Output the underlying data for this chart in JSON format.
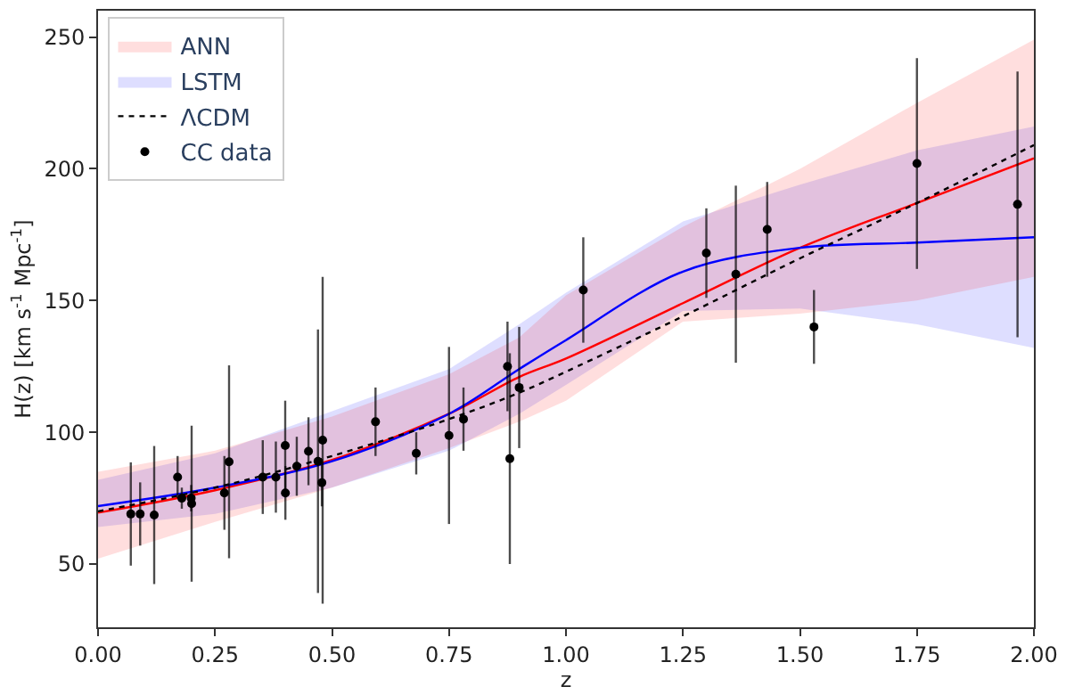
{
  "chart_data": {
    "type": "line",
    "xlabel": "z",
    "ylabel": "H(z) [km s$^{-1}$ Mpc$^{-1}$]",
    "xlim": [
      0,
      2
    ],
    "ylim": [
      26,
      260
    ],
    "xticks": [
      {
        "value": 0,
        "label": "0.00"
      },
      {
        "value": 0.25,
        "label": "0.25"
      },
      {
        "value": 0.5,
        "label": "0.50"
      },
      {
        "value": 0.75,
        "label": "0.75"
      },
      {
        "value": 1,
        "label": "1.00"
      },
      {
        "value": 1.25,
        "label": "1.25"
      },
      {
        "value": 1.5,
        "label": "1.50"
      },
      {
        "value": 1.75,
        "label": "1.75"
      },
      {
        "value": 2,
        "label": "2.00"
      }
    ],
    "yticks": [
      50,
      100,
      150,
      200,
      250
    ],
    "legend": "top left",
    "x": [
      0,
      0.25,
      0.5,
      0.75,
      0.9,
      1.0,
      1.25,
      1.5,
      1.75,
      2.0
    ],
    "series": [
      {
        "name": "ANN",
        "color": "#ff0000",
        "values": [
          69.5,
          78,
          89.5,
          107,
          121,
          128,
          149,
          170,
          187,
          204
        ],
        "lower": [
          52,
          66,
          79,
          94,
          104,
          112,
          142,
          145,
          150,
          159
        ],
        "upper": [
          85,
          93,
          106,
          122,
          136,
          152,
          178,
          200,
          225,
          249
        ]
      },
      {
        "name": "LSTM",
        "color": "#0000ff",
        "values": [
          72,
          79,
          89,
          107,
          124,
          135,
          161,
          170,
          172,
          174
        ],
        "lower": [
          64,
          69,
          79,
          93,
          107,
          118,
          146,
          147,
          141,
          132
        ],
        "upper": [
          82,
          92,
          108,
          124,
          141,
          153,
          180,
          194,
          207,
          216
        ]
      },
      {
        "name": "ΛCDM",
        "color": "#000000",
        "line_style": "dotted",
        "values": [
          70,
          79,
          91,
          105,
          115,
          123,
          144,
          166,
          187,
          209
        ]
      },
      {
        "name": "CC data",
        "type": "scatter",
        "color": "#000000",
        "marker": "circle",
        "x": [
          0.07,
          0.09,
          0.12,
          0.17,
          0.179,
          0.199,
          0.2,
          0.27,
          0.28,
          0.352,
          0.38,
          0.4,
          0.4004,
          0.4247,
          0.4497,
          0.47,
          0.4783,
          0.48,
          0.593,
          0.68,
          0.75,
          0.781,
          0.875,
          0.88,
          0.9,
          1.037,
          1.3,
          1.363,
          1.43,
          1.53,
          1.75,
          1.965
        ],
        "values": [
          69,
          69,
          68.6,
          83,
          75,
          75,
          72.9,
          77,
          88.8,
          83,
          83,
          95,
          77,
          87.1,
          92.8,
          89,
          80.9,
          97,
          104,
          92,
          98.8,
          105,
          125,
          90,
          117,
          154,
          168,
          160,
          177,
          140,
          202,
          186.5
        ],
        "errors": [
          19.6,
          12,
          26.2,
          8,
          4,
          5,
          29.6,
          14,
          36.6,
          14,
          13.5,
          17,
          10.2,
          11.2,
          12.9,
          50,
          9,
          62,
          13,
          8,
          33.6,
          12,
          17,
          40,
          23,
          20,
          17,
          33.6,
          18,
          14,
          40,
          50.4
        ]
      }
    ]
  }
}
